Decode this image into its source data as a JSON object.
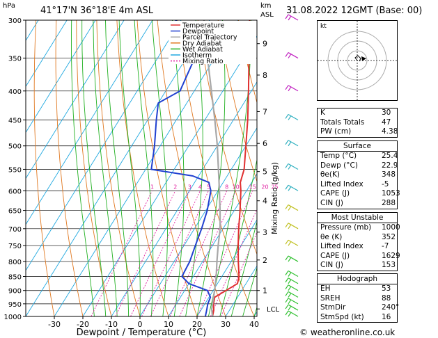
{
  "header": {
    "hpa": "hPa",
    "location": "41°17'N  36°18'E  4m  ASL",
    "km": "km",
    "asl": "ASL",
    "datetime": "31.08.2022  12GMT  (Base: 00)"
  },
  "credit": "© weatheronline.co.uk",
  "indices": {
    "K": "30",
    "Totals Totals": "47",
    "PW (cm)": "4.38"
  },
  "surface": {
    "title": "Surface",
    "rows": [
      [
        "Temp (°C)",
        "25.4"
      ],
      [
        "Dewp (°C)",
        "22.9"
      ],
      [
        "θe(K)",
        "348"
      ],
      [
        "Lifted Index",
        "-5"
      ],
      [
        "CAPE (J)",
        "1053"
      ],
      [
        "CIN (J)",
        "288"
      ]
    ]
  },
  "most_unstable": {
    "title": "Most Unstable",
    "rows": [
      [
        "Pressure (mb)",
        "1000"
      ],
      [
        "θe (K)",
        "352"
      ],
      [
        "Lifted Index",
        "-7"
      ],
      [
        "CAPE (J)",
        "1629"
      ],
      [
        "CIN (J)",
        "153"
      ]
    ]
  },
  "hodograph": {
    "title": "Hodograph",
    "label": "kt",
    "rows": [
      [
        "EH",
        "53"
      ],
      [
        "SREH",
        "88"
      ],
      [
        "StmDir",
        "240°"
      ],
      [
        "StmSpd (kt)",
        "16"
      ]
    ]
  },
  "chart_data": {
    "type": "line",
    "xlabel": "Dewpoint / Temperature (°C)",
    "ylabel_right": "Mixing Ratio (g/kg)",
    "x_ticks": [
      -30,
      -20,
      -10,
      0,
      10,
      20,
      30,
      40
    ],
    "pressure_ticks": [
      300,
      350,
      400,
      450,
      500,
      550,
      600,
      650,
      700,
      750,
      800,
      850,
      900,
      950,
      1000
    ],
    "km_ticks": [
      {
        "km": "1",
        "p": 900
      },
      {
        "km": "2",
        "p": 795
      },
      {
        "km": "3",
        "p": 710
      },
      {
        "km": "4",
        "p": 625
      },
      {
        "km": "5",
        "p": 555
      },
      {
        "km": "6",
        "p": 495
      },
      {
        "km": "7",
        "p": 435
      },
      {
        "km": "8",
        "p": 375
      },
      {
        "km": "9",
        "p": 330
      }
    ],
    "lcl": {
      "label": "LCL",
      "p": 970
    },
    "mixing_ratio_labels": [
      "1",
      "2",
      "3",
      "4",
      "5",
      "8",
      "10",
      "15",
      "20",
      "25"
    ],
    "legend": [
      "Temperature",
      "Dewpoint",
      "Parcel Trajectory",
      "Dry Adiabat",
      "Wet Adiabat",
      "Isotherm",
      "Mixing Ratio"
    ],
    "colors": {
      "temperature": "#e03030",
      "dewpoint": "#2040d0",
      "parcel": "#a8a8a8",
      "dry_adiabat": "#e07820",
      "wet_adiabat": "#20b020",
      "isotherm": "#20a8e0",
      "mixing_ratio": "#e020a0"
    },
    "series": [
      {
        "name": "Temperature",
        "points": [
          [
            1000,
            25.4
          ],
          [
            975,
            24.5
          ],
          [
            950,
            23.0
          ],
          [
            925,
            22.0
          ],
          [
            900,
            24.5
          ],
          [
            875,
            27.0
          ],
          [
            850,
            26.0
          ],
          [
            800,
            22.5
          ],
          [
            750,
            19.0
          ],
          [
            700,
            15.5
          ],
          [
            650,
            12.0
          ],
          [
            600,
            8.0
          ],
          [
            580,
            6.0
          ],
          [
            550,
            4.5
          ],
          [
            500,
            0.0
          ],
          [
            450,
            -5.0
          ],
          [
            400,
            -11.0
          ],
          [
            350,
            -18.0
          ],
          [
            300,
            -26.0
          ]
        ]
      },
      {
        "name": "Dewpoint",
        "points": [
          [
            1000,
            22.9
          ],
          [
            975,
            22.0
          ],
          [
            950,
            21.0
          ],
          [
            925,
            20.5
          ],
          [
            900,
            18.0
          ],
          [
            875,
            10.0
          ],
          [
            850,
            6.0
          ],
          [
            800,
            5.5
          ],
          [
            750,
            4.0
          ],
          [
            700,
            2.5
          ],
          [
            650,
            0.5
          ],
          [
            600,
            -2.5
          ],
          [
            580,
            -5.0
          ],
          [
            565,
            -12.0
          ],
          [
            550,
            -28.0
          ],
          [
            500,
            -32.0
          ],
          [
            450,
            -37.0
          ],
          [
            420,
            -40.0
          ],
          [
            400,
            -35.0
          ],
          [
            350,
            -37.0
          ],
          [
            320,
            -42.0
          ],
          [
            300,
            -52.0
          ]
        ]
      },
      {
        "name": "Parcel Trajectory",
        "points": [
          [
            1000,
            25.4
          ],
          [
            970,
            23.5
          ],
          [
            900,
            20.5
          ],
          [
            850,
            18.0
          ],
          [
            800,
            15.0
          ],
          [
            750,
            12.0
          ],
          [
            700,
            9.0
          ],
          [
            650,
            5.0
          ],
          [
            600,
            0.5
          ],
          [
            550,
            -4.5
          ],
          [
            500,
            -10.0
          ],
          [
            450,
            -16.5
          ],
          [
            400,
            -24.0
          ],
          [
            350,
            -32.5
          ],
          [
            300,
            -42.0
          ]
        ]
      }
    ],
    "wind_barbs_p": [
      1000,
      975,
      950,
      925,
      900,
      875,
      850,
      800,
      750,
      700,
      650,
      600,
      550,
      500,
      450,
      400,
      350,
      300
    ],
    "hodograph_storm_motion": {
      "dir_deg": 240,
      "speed_kt": 16
    }
  }
}
